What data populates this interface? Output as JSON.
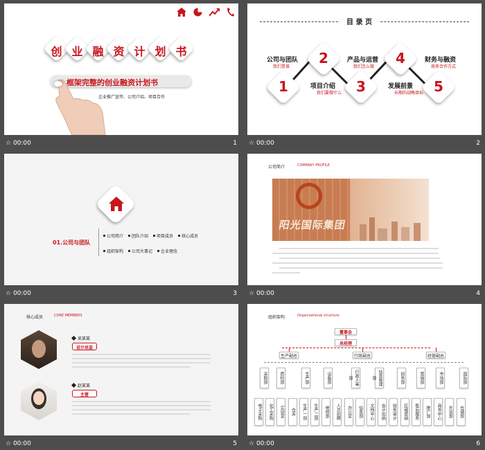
{
  "footer": {
    "time": "00:00"
  },
  "slides": [
    {
      "num": "1",
      "title_chars": [
        "创",
        "业",
        "融",
        "资",
        "计",
        "划",
        "书"
      ],
      "pill": "框架完整的创业融资计划书",
      "sub": "企业推广宣传、公司介绍、项目合作",
      "icons": [
        "home-icon",
        "pie-chart-icon",
        "trend-icon",
        "phone-icon"
      ]
    },
    {
      "num": "2",
      "title": "目 录 页",
      "items": [
        {
          "n": "1",
          "title": "公司与团队",
          "sub": "我们是谁"
        },
        {
          "n": "2",
          "title": "项目介绍",
          "sub": "我们要做什么"
        },
        {
          "n": "3",
          "title": "产品与运营",
          "sub": "我们怎么做"
        },
        {
          "n": "4",
          "title": "发展前景",
          "sub": "长期的战略目标"
        },
        {
          "n": "5",
          "title": "财务与融资",
          "sub": "商务合作方式"
        }
      ]
    },
    {
      "num": "3",
      "section": "01.公司与团队",
      "row1": [
        "公司简介",
        "团队介绍",
        "项目成员",
        "核心成员"
      ],
      "row2": [
        "组织架构",
        "公司大事记",
        "企业理念"
      ]
    },
    {
      "num": "4",
      "label_cn": "公司简介",
      "label_en": "COMPANY PROFILE",
      "logo_text": "阳光国际集团"
    },
    {
      "num": "5",
      "label_cn": "核心成员",
      "label_en": "CORE MEMBERS",
      "members": [
        {
          "name": "吴某某",
          "role": "设计总监"
        },
        {
          "name": "赵某某",
          "role": "主管"
        }
      ]
    },
    {
      "num": "6",
      "label_cn": "组织架构",
      "label_en": "Organizational structure",
      "top": "董事会",
      "gm": "总经理",
      "vps": [
        "生产副总",
        "行政副总",
        "经营副总"
      ],
      "depts": [
        "采购部",
        "质检部",
        "生产部",
        "设备部",
        "行政人事部",
        "信息管理部",
        "财务部",
        "营销部",
        "市场部",
        "国际部"
      ],
      "subs": [
        "电子采购",
        "化工采购",
        "实验室",
        "仓库",
        "生产一部",
        "生产二部",
        "维修部",
        "人员招聘",
        "办公室",
        "信息部",
        "文档中心",
        "会计出纳",
        "财务审计",
        "区域营销",
        "售后服务",
        "推广部",
        "商务中心",
        "外贸部",
        "仓储部"
      ]
    }
  ]
}
